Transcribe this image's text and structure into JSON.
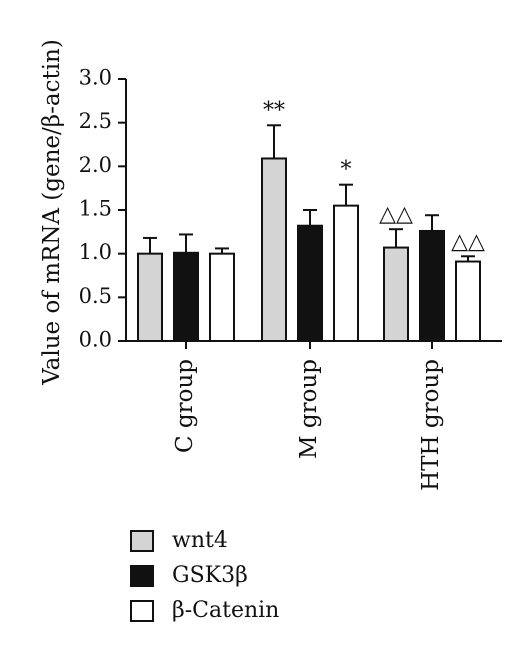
{
  "chart_data": {
    "type": "bar",
    "ylabel": "Value of mRNA (gene/β-actin)",
    "ylim": [
      0,
      3.0
    ],
    "yticks": [
      "0.0",
      "0.5",
      "1.0",
      "1.5",
      "2.0",
      "2.5",
      "3.0"
    ],
    "categories": [
      "C group",
      "M group",
      "HTH group"
    ],
    "series": [
      {
        "name": "wnt4",
        "color": "#d4d4d4",
        "values": [
          1.0,
          2.09,
          1.07
        ],
        "errors": [
          0.18,
          0.38,
          0.21
        ],
        "annotations": [
          "",
          "**",
          "△△"
        ]
      },
      {
        "name": "GSK3β",
        "color": "#111111",
        "values": [
          1.01,
          1.32,
          1.26
        ],
        "errors": [
          0.21,
          0.18,
          0.18
        ],
        "annotations": [
          "",
          "",
          ""
        ]
      },
      {
        "name": "β-Catenin",
        "color": "#ffffff",
        "values": [
          1.0,
          1.55,
          0.91
        ],
        "errors": [
          0.06,
          0.24,
          0.06
        ],
        "annotations": [
          "",
          "*",
          "△△"
        ]
      }
    ],
    "legend_position": "bottom-left",
    "grid": false
  }
}
